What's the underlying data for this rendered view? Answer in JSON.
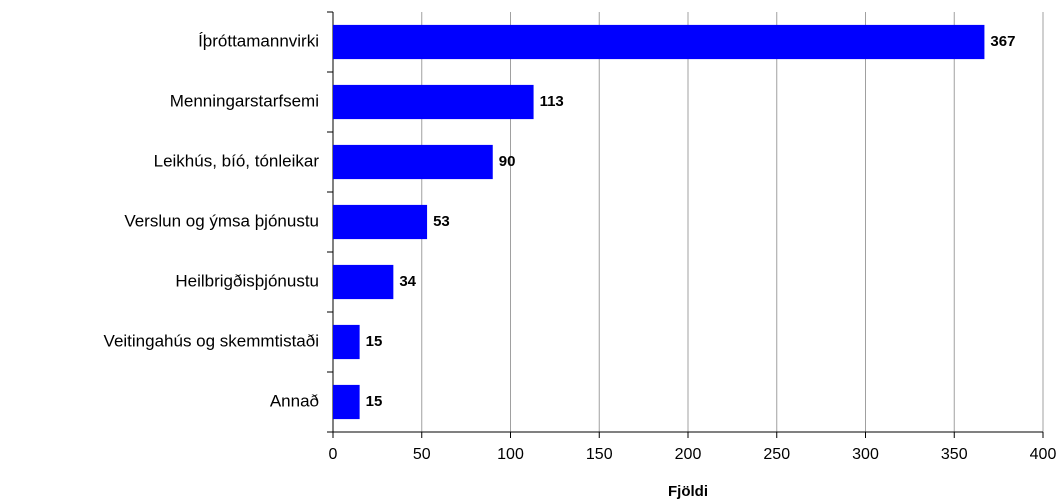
{
  "chart_data": {
    "type": "bar",
    "orientation": "horizontal",
    "categories": [
      "Íþróttamannvirki",
      "Menningarstarfsemi",
      "Leikhús, bíó, tónleikar",
      "Verslun og ýmsa þjónustu",
      "Heilbrigðisþjónustu",
      "Veitingahús og skemmtistaði",
      "Annað"
    ],
    "values": [
      367,
      113,
      90,
      53,
      34,
      15,
      15
    ],
    "color": "#0000ff",
    "xlabel": "Fjöldi",
    "xlim": [
      0,
      400
    ],
    "xticks": [
      0,
      50,
      100,
      150,
      200,
      250,
      300,
      350,
      400
    ],
    "grid": true
  }
}
